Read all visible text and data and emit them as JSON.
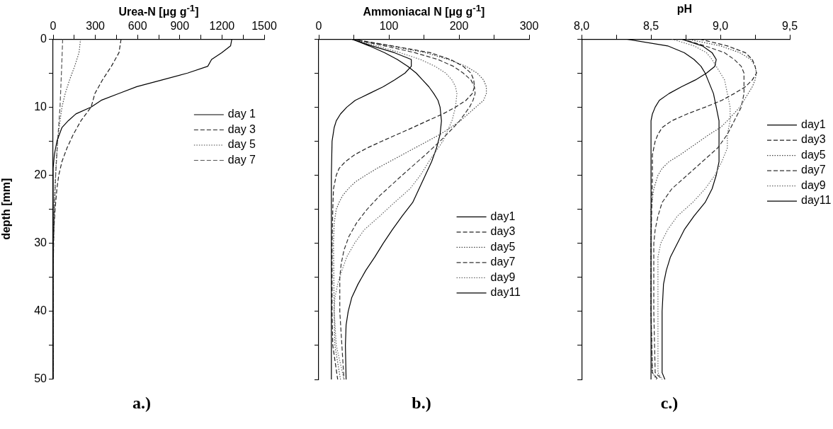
{
  "chart_data": [
    {
      "type": "line",
      "xlabel": "Urea-N [μg g$^{-1}$]",
      "ylabel": "depth [mm]",
      "annotations": [
        "a.)"
      ],
      "legend": "top right",
      "xlim": [
        0,
        1500
      ],
      "xticks": [
        0,
        {
          "value": 150,
          "label": null
        },
        300,
        {
          "value": 450,
          "label": null
        },
        600,
        {
          "value": 750,
          "label": null
        },
        900,
        {
          "value": 1050,
          "label": null
        },
        1200,
        {
          "value": 1350,
          "label": null
        },
        1500
      ],
      "ylim": [
        50,
        0
      ],
      "yticks": [
        0,
        {
          "value": 5,
          "label": null
        },
        10,
        {
          "value": 15,
          "label": null
        },
        20,
        {
          "value": 25,
          "label": null
        },
        30,
        {
          "value": 35,
          "label": null
        },
        40,
        {
          "value": 45,
          "label": null
        },
        50
      ],
      "series": [
        {
          "name": "day 1",
          "color": "#000000",
          "line_style": "solid",
          "x": [
            1270,
            1261,
            1198,
            1126,
            1099,
            955,
            775,
            595,
            468,
            342,
            270,
            162,
            108,
            63,
            27,
            9,
            0,
            0
          ],
          "values": [
            0,
            1,
            2,
            3,
            4,
            5,
            6,
            7,
            8,
            9,
            10,
            11,
            12,
            13,
            15,
            17,
            19,
            50
          ]
        },
        {
          "name": "day 3",
          "color": "#222222",
          "line_style": "dashed",
          "x": [
            483,
            468,
            414,
            351,
            297,
            270,
            198,
            144,
            99,
            63,
            40,
            27,
            14,
            5,
            2,
            0,
            0
          ],
          "values": [
            0,
            2,
            4,
            6,
            8,
            10,
            12,
            14,
            16,
            18,
            20,
            22,
            25,
            28,
            30,
            35,
            50
          ]
        },
        {
          "name": "day 5",
          "color": "#444444",
          "line_style": "dotted",
          "x": [
            195,
            184,
            153,
            117,
            86,
            63,
            49,
            32,
            22,
            13,
            5,
            2,
            0,
            0
          ],
          "values": [
            0,
            2,
            4,
            6,
            8,
            10,
            12,
            15,
            18,
            22,
            26,
            30,
            35,
            50
          ]
        },
        {
          "name": "day 7",
          "color": "#555555",
          "line_style": "dashed",
          "x": [
            68,
            59,
            49,
            32,
            18,
            9,
            4,
            0,
            0
          ],
          "values": [
            0,
            5,
            10,
            15,
            20,
            25,
            30,
            35,
            50
          ]
        }
      ]
    },
    {
      "type": "line",
      "xlabel": "Ammoniacal N [μg g$^{-1}$]",
      "annotations": [
        "b.)"
      ],
      "legend": "bottom right",
      "tick_labels": "x",
      "xlim": [
        0,
        300
      ],
      "xticks": [
        0,
        {
          "value": 50,
          "label": null
        },
        100,
        {
          "value": 150,
          "label": null
        },
        200,
        {
          "value": 250,
          "label": null
        },
        300
      ],
      "ylim": [
        50,
        0
      ],
      "yticks": [
        0,
        {
          "value": 5,
          "label": null
        },
        10,
        {
          "value": 15,
          "label": null
        },
        20,
        {
          "value": 25,
          "label": null
        },
        30,
        {
          "value": 35,
          "label": null
        },
        40,
        {
          "value": 45,
          "label": null
        },
        50
      ],
      "series": [
        {
          "name": "day1",
          "color": "#000000",
          "line_style": "solid",
          "x": [
            47,
            76,
            108,
            132,
            132,
            123,
            108,
            92,
            72,
            52,
            40,
            31,
            25,
            22,
            19,
            18,
            18
          ],
          "values": [
            0,
            1,
            2,
            3,
            4,
            5,
            6,
            7,
            8,
            9,
            10,
            11,
            12,
            13,
            15,
            20,
            50
          ]
        },
        {
          "name": "day3",
          "color": "#222222",
          "line_style": "dashed",
          "x": [
            47,
            105,
            159,
            188,
            206,
            217,
            221,
            222,
            219,
            210,
            195,
            177,
            155,
            134,
            112,
            90,
            69,
            51,
            38,
            29,
            25,
            21,
            20,
            19,
            19,
            20,
            27
          ],
          "values": [
            0,
            1,
            2,
            3,
            4,
            5,
            6,
            7,
            8,
            9,
            10,
            11,
            12,
            13,
            14,
            15,
            16,
            17,
            18,
            19,
            20,
            22,
            25,
            30,
            40,
            45,
            50
          ]
        },
        {
          "name": "day5",
          "color": "#444444",
          "line_style": "dotted",
          "x": [
            47,
            101,
            152,
            185,
            210,
            226,
            235,
            239,
            239,
            235,
            224,
            213,
            202,
            188,
            173,
            155,
            137,
            119,
            101,
            83,
            67,
            52,
            42,
            34,
            29,
            25,
            22,
            21,
            22,
            23,
            31
          ],
          "values": [
            0,
            1,
            2,
            3,
            4,
            5,
            6,
            7,
            8,
            9,
            10,
            11,
            12,
            13,
            14,
            15,
            16,
            17,
            18,
            19,
            20,
            21,
            22,
            23,
            24,
            25,
            27,
            30,
            40,
            45,
            50
          ]
        },
        {
          "name": "day7",
          "color": "#333333",
          "line_style": "dashed",
          "x": [
            47,
            94,
            137,
            170,
            192,
            206,
            217,
            222,
            223,
            220,
            215,
            208,
            201,
            192,
            173,
            152,
            119,
            87,
            69,
            54,
            43,
            36,
            32,
            30,
            30,
            33,
            36
          ],
          "values": [
            0,
            1,
            2,
            3,
            4,
            5,
            6,
            7,
            8,
            9,
            10,
            11,
            12,
            13,
            15,
            17,
            20,
            23,
            25,
            27,
            29,
            31,
            33,
            35,
            40,
            45,
            50
          ]
        },
        {
          "name": "day9",
          "color": "#666666",
          "line_style": "dotted",
          "x": [
            47,
            83,
            116,
            145,
            166,
            181,
            190,
            195,
            197,
            195,
            190,
            177,
            157,
            145,
            130,
            108,
            87,
            65,
            51,
            40,
            33,
            27,
            23,
            22,
            25,
            36
          ],
          "values": [
            0,
            1,
            2,
            3,
            4,
            5,
            6,
            7,
            8,
            10,
            12,
            15,
            18,
            20,
            22,
            24,
            26,
            28,
            30,
            32,
            34,
            36,
            38,
            40,
            45,
            50
          ]
        },
        {
          "name": "day11",
          "color": "#000000",
          "line_style": "solid",
          "x": [
            47,
            72,
            94,
            112,
            127,
            139,
            148,
            157,
            164,
            170,
            173,
            175,
            173,
            168,
            161,
            152,
            143,
            134,
            119,
            105,
            92,
            80,
            67,
            56,
            47,
            42,
            39,
            38,
            39
          ],
          "values": [
            0,
            1,
            2,
            3,
            4,
            5,
            6,
            7,
            8,
            9,
            10,
            12,
            14,
            16,
            18,
            20,
            22,
            24,
            26,
            28,
            30,
            32,
            34,
            36,
            38,
            40,
            42,
            45,
            50
          ]
        }
      ]
    },
    {
      "type": "line",
      "xlabel": "pH",
      "annotations": [
        "c.)"
      ],
      "legend": "right",
      "tick_labels": "x",
      "xlim": [
        8,
        9.5
      ],
      "xticks": [
        {
          "value": 8,
          "label": "8,0"
        },
        {
          "value": 8.25,
          "label": null
        },
        {
          "value": 8.5,
          "label": "8,5"
        },
        {
          "value": 8.75,
          "label": null
        },
        {
          "value": 9,
          "label": "9,0"
        },
        {
          "value": 9.25,
          "label": null
        },
        {
          "value": 9.5,
          "label": "9,5"
        }
      ],
      "ylim": [
        50,
        0
      ],
      "yticks": [
        0,
        {
          "value": 5,
          "label": null
        },
        10,
        {
          "value": 15,
          "label": null
        },
        20,
        {
          "value": 25,
          "label": null
        },
        30,
        {
          "value": 35,
          "label": null
        },
        40,
        {
          "value": 45,
          "label": null
        },
        50
      ],
      "series": [
        {
          "name": "day1",
          "color": "#000000",
          "line_style": "solid",
          "x": [
            8.72,
            8.87,
            8.94,
            8.97,
            8.96,
            8.9,
            8.82,
            8.72,
            8.63,
            8.56,
            8.53,
            8.51,
            8.5,
            8.5
          ],
          "values": [
            0,
            1,
            2,
            3,
            4,
            5,
            6,
            7,
            8,
            9,
            10,
            11,
            12,
            50
          ]
        },
        {
          "name": "day3",
          "color": "#222222",
          "line_style": "dashed",
          "x": [
            8.85,
            9.05,
            9.18,
            9.23,
            9.25,
            9.26,
            9.23,
            9.18,
            9.1,
            9.01,
            8.89,
            8.76,
            8.65,
            8.58,
            8.55,
            8.53,
            8.51,
            8.51,
            8.5,
            8.5,
            8.51,
            8.55
          ],
          "values": [
            0,
            1,
            2,
            3,
            4,
            5,
            6,
            7,
            8,
            9,
            10,
            11,
            12,
            13,
            14,
            15,
            17,
            20,
            30,
            40,
            49,
            50
          ]
        },
        {
          "name": "day5",
          "color": "#444444",
          "line_style": "dotted",
          "x": [
            8.76,
            9,
            9.14,
            9.22,
            9.25,
            9.26,
            9.25,
            9.23,
            9.2,
            9.14,
            9.05,
            9,
            8.92,
            8.85,
            8.78,
            8.71,
            8.63,
            8.58,
            8.55,
            8.52,
            8.5,
            8.5,
            8.51,
            8.54
          ],
          "values": [
            0,
            1,
            2,
            3,
            4,
            5,
            6,
            7,
            8,
            10,
            12,
            13,
            14,
            15,
            16,
            17,
            18,
            19,
            20,
            22,
            25,
            40,
            49,
            50
          ]
        },
        {
          "name": "day7",
          "color": "#333333",
          "line_style": "dashed",
          "x": [
            8.72,
            8.89,
            9.03,
            9.1,
            9.15,
            9.17,
            9.17,
            9.15,
            9.1,
            9.05,
            8.98,
            8.87,
            8.76,
            8.65,
            8.58,
            8.55,
            8.53,
            8.52,
            8.52,
            8.53,
            8.58
          ],
          "values": [
            0,
            1,
            2,
            3,
            4,
            5,
            8,
            10,
            12,
            14,
            16,
            18,
            20,
            22,
            24,
            26,
            28,
            30,
            40,
            49,
            50
          ]
        },
        {
          "name": "day9",
          "color": "#666666",
          "line_style": "dotted",
          "x": [
            8.65,
            8.81,
            8.9,
            8.94,
            8.97,
            9,
            9.03,
            9.05,
            9.07,
            9.07,
            9.05,
            9.05,
            9.01,
            8.96,
            8.89,
            8.8,
            8.69,
            8.62,
            8.57,
            8.55,
            8.55,
            8.58
          ],
          "values": [
            0,
            1,
            2,
            3,
            4,
            5,
            6,
            8,
            10,
            12,
            14,
            16,
            18,
            20,
            22,
            24,
            26,
            28,
            30,
            32,
            49,
            50
          ]
        },
        {
          "name": "day11",
          "color": "#000000",
          "line_style": "solid",
          "x": [
            8.32,
            8.62,
            8.74,
            8.81,
            8.86,
            8.89,
            8.91,
            8.95,
            8.97,
            8.99,
            8.99,
            8.97,
            8.94,
            8.89,
            8.81,
            8.74,
            8.69,
            8.64,
            8.61,
            8.59,
            8.58,
            8.58,
            8.6
          ],
          "values": [
            0,
            1,
            2,
            3,
            4,
            5,
            6,
            8,
            10,
            12,
            18,
            20,
            22,
            24,
            26,
            28,
            30,
            32,
            34,
            36,
            40,
            49,
            50
          ]
        }
      ]
    }
  ]
}
